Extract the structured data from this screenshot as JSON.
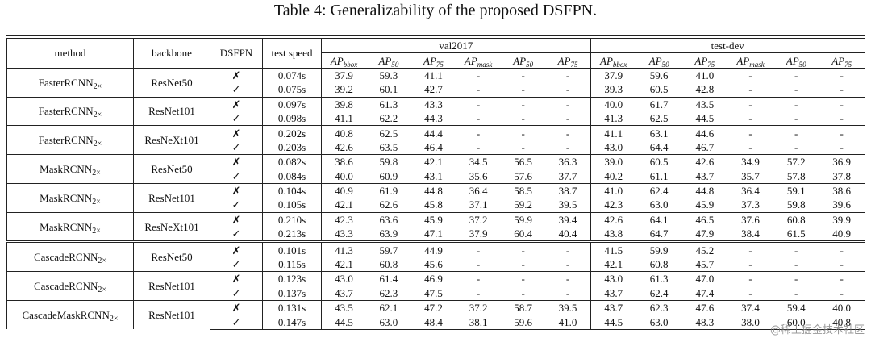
{
  "title": "Table 4: Generalizability of the proposed DSFPN.",
  "table": {
    "header": {
      "method": "method",
      "backbone": "backbone",
      "dsfpn": "DSFPN",
      "speed": "test speed",
      "groups": [
        "val2017",
        "test-dev"
      ],
      "metrics": [
        [
          {
            "base": "AP",
            "sub": "bbox"
          },
          {
            "base": "AP",
            "sub": "50"
          },
          {
            "base": "AP",
            "sub": "75"
          },
          {
            "base": "AP",
            "sub": "mask"
          },
          {
            "base": "AP",
            "sub": "50"
          },
          {
            "base": "AP",
            "sub": "75"
          }
        ],
        [
          {
            "base": "AP",
            "sub": "bbox"
          },
          {
            "base": "AP",
            "sub": "50"
          },
          {
            "base": "AP",
            "sub": "75"
          },
          {
            "base": "AP",
            "sub": "mask"
          },
          {
            "base": "AP",
            "sub": "50"
          },
          {
            "base": "AP",
            "sub": "75"
          }
        ]
      ]
    },
    "groups": [
      {
        "method": {
          "name": "FasterRCNN",
          "sub": "2×"
        },
        "backbone": "ResNet50",
        "rows": [
          {
            "dsfpn": "✗",
            "speed": "0.074s",
            "values": [
              "37.9",
              "59.3",
              "41.1",
              "-",
              "-",
              "-",
              "37.9",
              "59.6",
              "41.0",
              "-",
              "-",
              "-"
            ]
          },
          {
            "dsfpn": "✓",
            "speed": "0.075s",
            "values": [
              "39.2",
              "60.1",
              "42.7",
              "-",
              "-",
              "-",
              "39.3",
              "60.5",
              "42.8",
              "-",
              "-",
              "-"
            ]
          }
        ]
      },
      {
        "method": {
          "name": "FasterRCNN",
          "sub": "2×"
        },
        "backbone": "ResNet101",
        "rows": [
          {
            "dsfpn": "✗",
            "speed": "0.097s",
            "values": [
              "39.8",
              "61.3",
              "43.3",
              "-",
              "-",
              "-",
              "40.0",
              "61.7",
              "43.5",
              "-",
              "-",
              "-"
            ]
          },
          {
            "dsfpn": "✓",
            "speed": "0.098s",
            "values": [
              "41.1",
              "62.2",
              "44.3",
              "-",
              "-",
              "-",
              "41.3",
              "62.5",
              "44.5",
              "-",
              "-",
              "-"
            ]
          }
        ]
      },
      {
        "method": {
          "name": "FasterRCNN",
          "sub": "2×"
        },
        "backbone": "ResNeXt101",
        "rows": [
          {
            "dsfpn": "✗",
            "speed": "0.202s",
            "values": [
              "40.8",
              "62.5",
              "44.4",
              "-",
              "-",
              "-",
              "41.1",
              "63.1",
              "44.6",
              "-",
              "-",
              "-"
            ]
          },
          {
            "dsfpn": "✓",
            "speed": "0.203s",
            "values": [
              "42.6",
              "63.5",
              "46.4",
              "-",
              "-",
              "-",
              "43.0",
              "64.4",
              "46.7",
              "-",
              "-",
              "-"
            ]
          }
        ]
      },
      {
        "method": {
          "name": "MaskRCNN",
          "sub": "2×"
        },
        "backbone": "ResNet50",
        "rows": [
          {
            "dsfpn": "✗",
            "speed": "0.082s",
            "values": [
              "38.6",
              "59.8",
              "42.1",
              "34.5",
              "56.5",
              "36.3",
              "39.0",
              "60.5",
              "42.6",
              "34.9",
              "57.2",
              "36.9"
            ]
          },
          {
            "dsfpn": "✓",
            "speed": "0.084s",
            "values": [
              "40.0",
              "60.9",
              "43.1",
              "35.6",
              "57.6",
              "37.7",
              "40.2",
              "61.1",
              "43.7",
              "35.7",
              "57.8",
              "37.8"
            ]
          }
        ]
      },
      {
        "method": {
          "name": "MaskRCNN",
          "sub": "2×"
        },
        "backbone": "ResNet101",
        "rows": [
          {
            "dsfpn": "✗",
            "speed": "0.104s",
            "values": [
              "40.9",
              "61.9",
              "44.8",
              "36.4",
              "58.5",
              "38.7",
              "41.0",
              "62.4",
              "44.8",
              "36.4",
              "59.1",
              "38.6"
            ]
          },
          {
            "dsfpn": "✓",
            "speed": "0.105s",
            "values": [
              "42.1",
              "62.6",
              "45.8",
              "37.1",
              "59.2",
              "39.5",
              "42.3",
              "63.0",
              "45.9",
              "37.3",
              "59.8",
              "39.6"
            ]
          }
        ]
      },
      {
        "method": {
          "name": "MaskRCNN",
          "sub": "2×"
        },
        "backbone": "ResNeXt101",
        "rows": [
          {
            "dsfpn": "✗",
            "speed": "0.210s",
            "values": [
              "42.3",
              "63.6",
              "45.9",
              "37.2",
              "59.9",
              "39.4",
              "42.6",
              "64.1",
              "46.5",
              "37.6",
              "60.8",
              "39.9"
            ]
          },
          {
            "dsfpn": "✓",
            "speed": "0.213s",
            "values": [
              "43.3",
              "63.9",
              "47.1",
              "37.9",
              "60.4",
              "40.4",
              "43.8",
              "64.7",
              "47.9",
              "38.4",
              "61.5",
              "40.9"
            ]
          }
        ]
      },
      {
        "method": {
          "name": "CascadeRCNN",
          "sub": "2×"
        },
        "backbone": "ResNet50",
        "rows": [
          {
            "dsfpn": "✗",
            "speed": "0.101s",
            "values": [
              "41.3",
              "59.7",
              "44.9",
              "-",
              "-",
              "-",
              "41.5",
              "59.9",
              "45.2",
              "-",
              "-",
              "-"
            ]
          },
          {
            "dsfpn": "✓",
            "speed": "0.115s",
            "values": [
              "42.1",
              "60.8",
              "45.6",
              "-",
              "-",
              "-",
              "42.1",
              "60.8",
              "45.7",
              "-",
              "-",
              "-"
            ]
          }
        ]
      },
      {
        "method": {
          "name": "CascadeRCNN",
          "sub": "2×"
        },
        "backbone": "ResNet101",
        "rows": [
          {
            "dsfpn": "✗",
            "speed": "0.123s",
            "values": [
              "43.0",
              "61.4",
              "46.9",
              "-",
              "-",
              "-",
              "43.0",
              "61.3",
              "47.0",
              "-",
              "-",
              "-"
            ]
          },
          {
            "dsfpn": "✓",
            "speed": "0.137s",
            "values": [
              "43.7",
              "62.3",
              "47.5",
              "-",
              "-",
              "-",
              "43.7",
              "62.4",
              "47.4",
              "-",
              "-",
              "-"
            ]
          }
        ]
      },
      {
        "method": {
          "name": "CascadeMaskRCNN",
          "sub": "2×"
        },
        "backbone": "ResNet101",
        "rows": [
          {
            "dsfpn": "✗",
            "speed": "0.131s",
            "values": [
              "43.5",
              "62.1",
              "47.2",
              "37.2",
              "58.7",
              "39.5",
              "43.7",
              "62.3",
              "47.6",
              "37.4",
              "59.4",
              "40.0"
            ]
          },
          {
            "dsfpn": "✓",
            "speed": "0.147s",
            "values": [
              "44.5",
              "63.0",
              "48.4",
              "38.1",
              "59.6",
              "41.0",
              "44.5",
              "63.0",
              "48.3",
              "38.0",
              "60.0",
              "40.8"
            ]
          }
        ]
      }
    ]
  },
  "watermark": "@稀土掘金技术社区"
}
